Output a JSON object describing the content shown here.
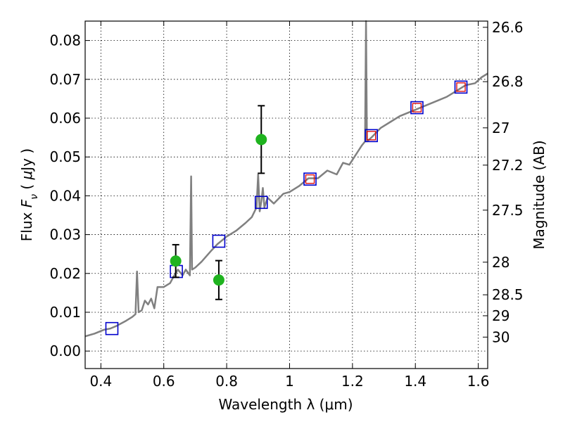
{
  "chart_data": {
    "type": "scatter",
    "title": "",
    "xlabel": "Wavelength  λ (μm)",
    "ylabel_left": "Flux  F_ν  ( μJy )",
    "ylabel_right": "Magnitude (AB)",
    "xlim": [
      0.35,
      1.63
    ],
    "ylim": [
      -0.0045,
      0.085
    ],
    "grid": true,
    "x_ticks": [
      0.4,
      0.6,
      0.8,
      1.0,
      1.2,
      1.4,
      1.6
    ],
    "x_tick_labels": [
      "0.4",
      "0.6",
      "0.8",
      "1",
      "1.2",
      "1.4",
      "1.6"
    ],
    "y_ticks": [
      0.0,
      0.01,
      0.02,
      0.03,
      0.04,
      0.05,
      0.06,
      0.07,
      0.08
    ],
    "y_tick_labels": [
      "0.00",
      "0.01",
      "0.02",
      "0.03",
      "0.04",
      "0.05",
      "0.06",
      "0.07",
      "0.08"
    ],
    "right_ticks": [
      {
        "label": "26.6",
        "flux": 0.0834
      },
      {
        "label": "26.8",
        "flux": 0.0694
      },
      {
        "label": "27",
        "flux": 0.0575
      },
      {
        "label": "27.2",
        "flux": 0.0479
      },
      {
        "label": "27.5",
        "flux": 0.0363
      },
      {
        "label": "28",
        "flux": 0.0229
      },
      {
        "label": "28.5",
        "flux": 0.0145
      },
      {
        "label": "29",
        "flux": 0.0091
      },
      {
        "label": "30",
        "flux": 0.0036
      }
    ],
    "series": [
      {
        "kind": "line",
        "color": "#808080",
        "points": [
          [
            0.35,
            0.0038
          ],
          [
            0.38,
            0.0045
          ],
          [
            0.41,
            0.0055
          ],
          [
            0.43,
            0.0058
          ],
          [
            0.45,
            0.0065
          ],
          [
            0.48,
            0.0078
          ],
          [
            0.5,
            0.0088
          ],
          [
            0.51,
            0.0095
          ],
          [
            0.515,
            0.0205
          ],
          [
            0.52,
            0.01
          ],
          [
            0.53,
            0.0105
          ],
          [
            0.54,
            0.013
          ],
          [
            0.55,
            0.012
          ],
          [
            0.56,
            0.0135
          ],
          [
            0.57,
            0.011
          ],
          [
            0.58,
            0.0165
          ],
          [
            0.6,
            0.0165
          ],
          [
            0.62,
            0.0175
          ],
          [
            0.63,
            0.019
          ],
          [
            0.645,
            0.021
          ],
          [
            0.66,
            0.0195
          ],
          [
            0.67,
            0.021
          ],
          [
            0.683,
            0.0195
          ],
          [
            0.687,
            0.045
          ],
          [
            0.69,
            0.021
          ],
          [
            0.7,
            0.0215
          ],
          [
            0.72,
            0.023
          ],
          [
            0.75,
            0.0258
          ],
          [
            0.77,
            0.0275
          ],
          [
            0.8,
            0.0295
          ],
          [
            0.83,
            0.031
          ],
          [
            0.86,
            0.033
          ],
          [
            0.88,
            0.0345
          ],
          [
            0.895,
            0.037
          ],
          [
            0.9,
            0.0455
          ],
          [
            0.905,
            0.036
          ],
          [
            0.91,
            0.0385
          ],
          [
            0.915,
            0.042
          ],
          [
            0.92,
            0.037
          ],
          [
            0.93,
            0.0395
          ],
          [
            0.95,
            0.038
          ],
          [
            0.98,
            0.0405
          ],
          [
            1.0,
            0.041
          ],
          [
            1.03,
            0.0425
          ],
          [
            1.06,
            0.0445
          ],
          [
            1.09,
            0.0445
          ],
          [
            1.12,
            0.0465
          ],
          [
            1.15,
            0.0455
          ],
          [
            1.17,
            0.0485
          ],
          [
            1.19,
            0.048
          ],
          [
            1.21,
            0.0505
          ],
          [
            1.23,
            0.053
          ],
          [
            1.24,
            0.054
          ],
          [
            1.243,
            0.085
          ],
          [
            1.246,
            0.054
          ],
          [
            1.26,
            0.055
          ],
          [
            1.29,
            0.0575
          ],
          [
            1.32,
            0.059
          ],
          [
            1.35,
            0.0605
          ],
          [
            1.38,
            0.0615
          ],
          [
            1.41,
            0.0625
          ],
          [
            1.44,
            0.0635
          ],
          [
            1.47,
            0.0645
          ],
          [
            1.5,
            0.0655
          ],
          [
            1.53,
            0.067
          ],
          [
            1.56,
            0.0685
          ],
          [
            1.59,
            0.069
          ],
          [
            1.61,
            0.0705
          ],
          [
            1.63,
            0.0715
          ]
        ]
      },
      {
        "kind": "squares",
        "color": "#0000cc",
        "points": [
          [
            0.435,
            0.0058
          ],
          [
            0.64,
            0.0205
          ],
          [
            0.775,
            0.0283
          ],
          [
            0.91,
            0.0383
          ],
          [
            1.065,
            0.0443
          ],
          [
            1.26,
            0.0555
          ],
          [
            1.405,
            0.0627
          ],
          [
            1.545,
            0.068
          ]
        ]
      },
      {
        "kind": "squares_small",
        "color": "#dd0000",
        "points": [
          [
            1.065,
            0.0443
          ],
          [
            1.26,
            0.0555
          ],
          [
            1.405,
            0.0627
          ],
          [
            1.545,
            0.068
          ]
        ]
      },
      {
        "kind": "points_errorbar",
        "color": "#1fb31f",
        "points": [
          {
            "x": 0.638,
            "y": 0.0232,
            "err": 0.0042
          },
          {
            "x": 0.775,
            "y": 0.0183,
            "err": 0.005
          },
          {
            "x": 0.91,
            "y": 0.0545,
            "err": 0.0087
          }
        ]
      }
    ]
  }
}
